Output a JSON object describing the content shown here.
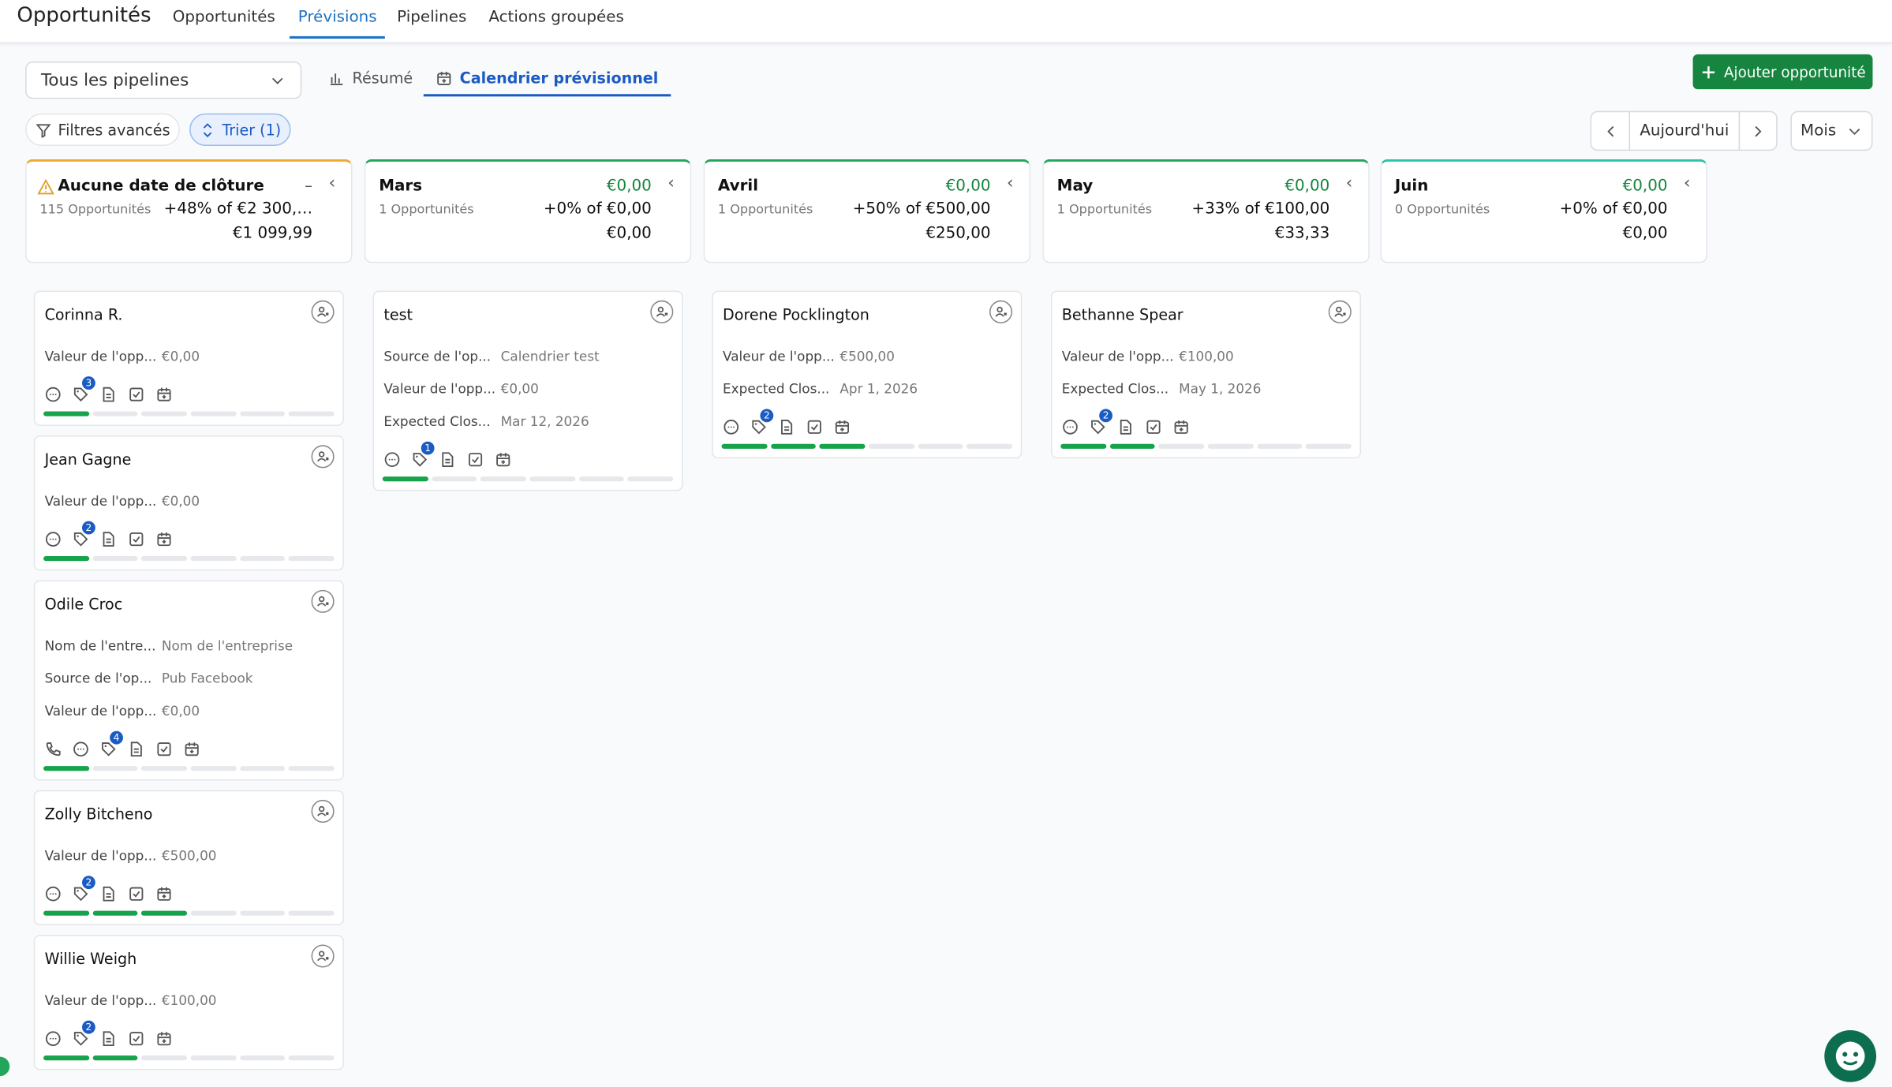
{
  "header": {
    "title": "Opportunités",
    "tabs": [
      "Opportunités",
      "Prévisions",
      "Pipelines",
      "Actions groupées"
    ],
    "active_tab": 1
  },
  "toolbar": {
    "pipeline_select": "Tous les pipelines",
    "views": [
      "Résumé",
      "Calendrier prévisionnel"
    ],
    "active_view": 1,
    "add_button": "Ajouter opportunité",
    "filters": "Filtres avancés",
    "sort": "Trier (1)",
    "today": "Aujourd'hui",
    "period": "Mois"
  },
  "columns": [
    {
      "name": "Aucune date de clôture",
      "amount": "–",
      "count": "115 Opportunités",
      "comparison": "+48% of €2 300,…",
      "total": "€1 099,99",
      "warning": true,
      "cards": [
        {
          "name": "Corinna R.",
          "fields": [
            [
              "Valeur de l'opp...",
              "€0,00"
            ]
          ],
          "badge": "3",
          "progress": 1
        },
        {
          "name": "Jean Gagne",
          "fields": [
            [
              "Valeur de l'opp...",
              "€0,00"
            ]
          ],
          "badge": "2",
          "progress": 1
        },
        {
          "name": "Odile Croc",
          "fields": [
            [
              "Nom de l'entre...",
              "Nom de l'entreprise"
            ],
            [
              "Source de l'op...",
              "Pub Facebook"
            ],
            [
              "Valeur de l'opp...",
              "€0,00"
            ]
          ],
          "badge": "4",
          "progress": 1,
          "call": true
        },
        {
          "name": "Zolly Bitcheno",
          "fields": [
            [
              "Valeur de l'opp...",
              "€500,00"
            ]
          ],
          "badge": "2",
          "progress": 3
        },
        {
          "name": "Willie Weigh",
          "fields": [
            [
              "Valeur de l'opp...",
              "€100,00"
            ]
          ],
          "badge": "2",
          "progress": 2
        }
      ]
    },
    {
      "name": "Mars",
      "amount": "€0,00",
      "count": "1 Opportunités",
      "comparison": "+0% of €0,00",
      "total": "€0,00",
      "cards": [
        {
          "name": "test",
          "fields": [
            [
              "Source de l'op...",
              "Calendrier test"
            ],
            [
              "Valeur de l'opp...",
              "€0,00"
            ],
            [
              "Expected Clos...",
              "Mar 12, 2026"
            ]
          ],
          "badge": "1",
          "progress": 1
        }
      ]
    },
    {
      "name": "Avril",
      "amount": "€0,00",
      "count": "1 Opportunités",
      "comparison": "+50% of €500,00",
      "total": "€250,00",
      "cards": [
        {
          "name": "Dorene Pocklington",
          "fields": [
            [
              "Valeur de l'opp...",
              "€500,00"
            ],
            [
              "Expected Clos...",
              "Apr 1, 2026"
            ]
          ],
          "badge": "2",
          "progress": 3
        }
      ]
    },
    {
      "name": "May",
      "amount": "€0,00",
      "count": "1 Opportunités",
      "comparison": "+33% of €100,00",
      "total": "€33,33",
      "cards": [
        {
          "name": "Bethanne Spear",
          "fields": [
            [
              "Valeur de l'opp...",
              "€100,00"
            ],
            [
              "Expected Clos...",
              "May 1, 2026"
            ]
          ],
          "badge": "2",
          "progress": 2
        }
      ]
    },
    {
      "name": "Juin",
      "amount": "€0,00",
      "count": "0 Opportunités",
      "comparison": "+0% of €0,00",
      "total": "€0,00",
      "cards": []
    }
  ]
}
